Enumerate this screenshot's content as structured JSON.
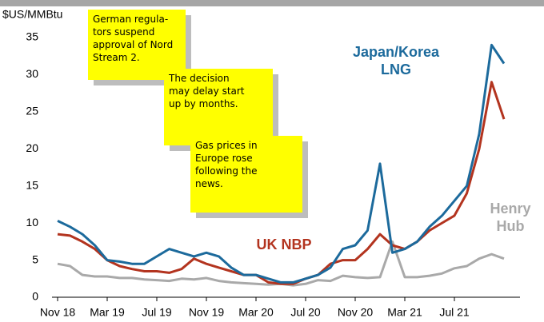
{
  "chart_data": {
    "type": "line",
    "y_axis_label": "$US/MMBtu",
    "categories": [
      "Nov 18",
      null,
      null,
      null,
      "Mar 19",
      null,
      null,
      null,
      "Jul 19",
      null,
      null,
      null,
      "Nov 19",
      null,
      null,
      null,
      "Mar 20",
      null,
      null,
      null,
      "Jul 20",
      null,
      null,
      null,
      "Nov 20",
      null,
      null,
      null,
      "Mar 21",
      null,
      null,
      null,
      "Jul 21",
      null,
      null,
      null,
      null
    ],
    "series": [
      {
        "name": "Japan/Korea LNG",
        "color": "#1c6a9c",
        "values": [
          10.3,
          9.5,
          8.5,
          7,
          5,
          4.8,
          4.5,
          4.5,
          5.5,
          6.5,
          6,
          5.5,
          6,
          5.5,
          4,
          3,
          3,
          2.5,
          2,
          2,
          2.5,
          3,
          4,
          6.5,
          7,
          9,
          18,
          6,
          6.5,
          7.5,
          9.5,
          11,
          13,
          15,
          22,
          34,
          31.5
        ]
      },
      {
        "name": "UK NBP",
        "color": "#b3341f",
        "values": [
          8.5,
          8.3,
          7.5,
          6.5,
          5,
          4.2,
          3.8,
          3.5,
          3.5,
          3.3,
          3.8,
          5.2,
          4.5,
          4,
          3.5,
          3,
          3,
          2,
          1.8,
          1.8,
          2.5,
          3,
          4.5,
          5,
          5,
          6.5,
          8.5,
          7,
          6.5,
          7.5,
          9,
          10,
          11,
          14,
          20,
          29,
          24
        ]
      },
      {
        "name": "Henry Hub",
        "color": "#a9a9a9",
        "values": [
          4.5,
          4.2,
          3,
          2.8,
          2.8,
          2.6,
          2.6,
          2.4,
          2.3,
          2.2,
          2.5,
          2.4,
          2.6,
          2.2,
          2,
          1.9,
          1.8,
          1.7,
          1.8,
          1.6,
          1.8,
          2.3,
          2.2,
          2.9,
          2.7,
          2.6,
          2.7,
          7.5,
          2.7,
          2.7,
          2.9,
          3.2,
          3.9,
          4.2,
          5.2,
          5.8,
          5.2
        ]
      }
    ],
    "ylim": [
      0,
      35
    ],
    "yticks": [
      0,
      5,
      10,
      15,
      20,
      25,
      30,
      35
    ],
    "annotations": [
      {
        "lines": [
          "German regula-",
          "tors suspend",
          "approval of Nord",
          "Stream 2."
        ]
      },
      {
        "lines": [
          "The decision",
          "may delay start",
          "up by months."
        ]
      },
      {
        "lines": [
          "Gas prices in",
          "Europe rose",
          "following the",
          "news."
        ]
      }
    ]
  }
}
